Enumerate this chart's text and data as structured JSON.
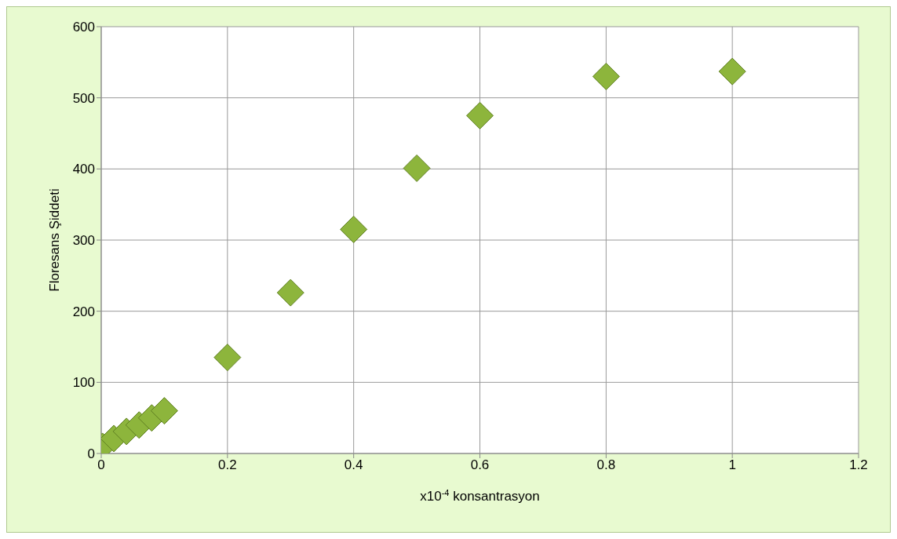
{
  "chart_data": {
    "type": "scatter",
    "xlabel": "x10$^{-4}$ konsantrasyon",
    "ylabel": "Floresans Şiddeti",
    "x": [
      0.002,
      0.02,
      0.04,
      0.06,
      0.08,
      0.1,
      0.2,
      0.3,
      0.4,
      0.5,
      0.6,
      0.8,
      1
    ],
    "series": [
      {
        "color": "#8db53c",
        "values": [
          10,
          21,
          31,
          40,
          50,
          60,
          135,
          226,
          315,
          401,
          475,
          530,
          537
        ]
      }
    ],
    "xlim": [
      0,
      1.2
    ],
    "xticks": [
      0,
      0.2,
      0.4,
      0.6,
      0.8,
      1,
      1.2
    ],
    "ylim": [
      0,
      600
    ],
    "yticks": [
      0,
      100,
      200,
      300,
      400,
      500,
      600
    ],
    "grid": true,
    "marker": "diamond"
  }
}
